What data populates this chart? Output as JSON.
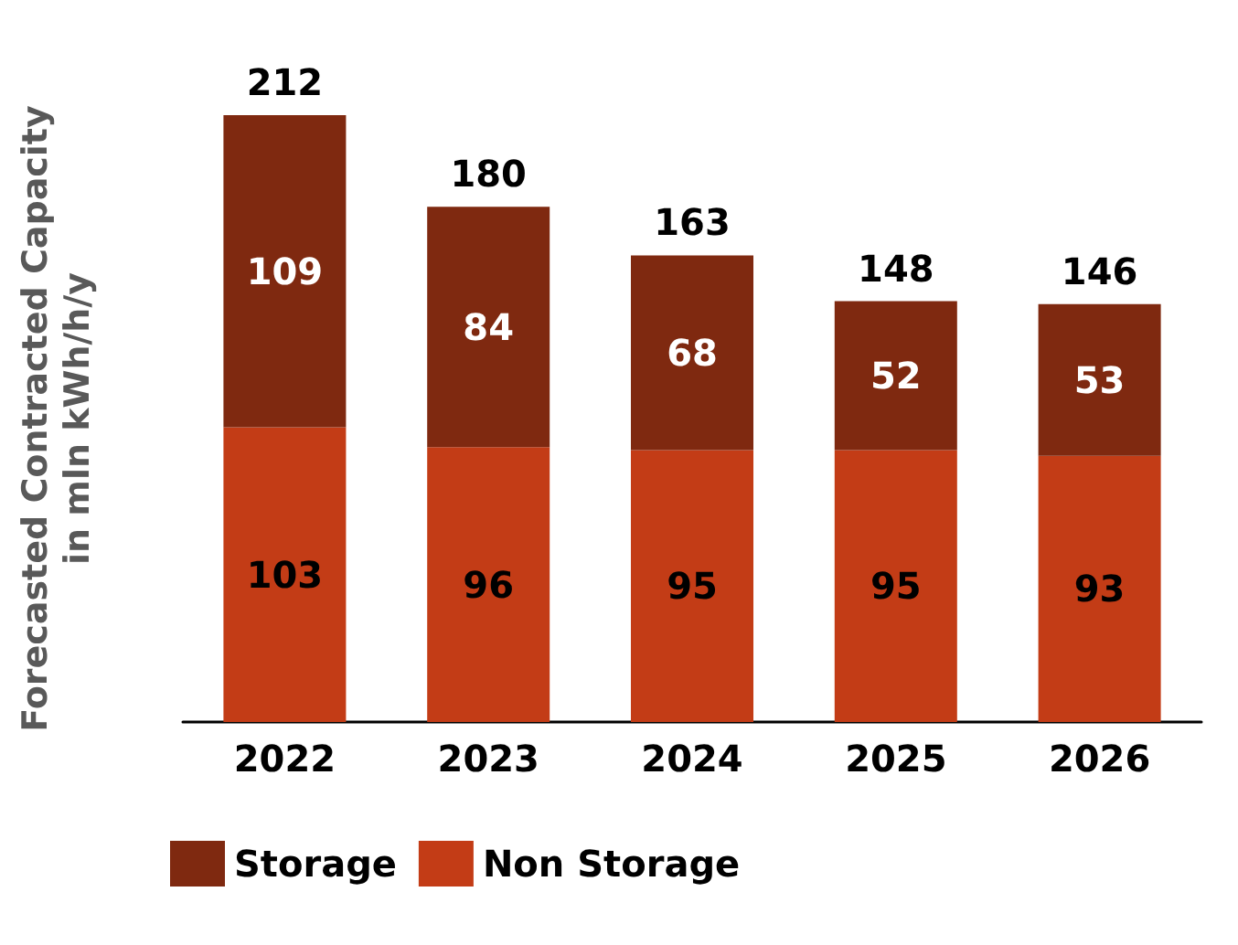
{
  "chart_data": {
    "type": "bar",
    "ylabel": "Forecasted Contracted Capacity\nin mln kWh/h/y",
    "categories": [
      "2022",
      "2023",
      "2024",
      "2025",
      "2026"
    ],
    "stacked": true,
    "series": [
      {
        "name": "Non Storage",
        "color": "#c33c16",
        "values": [
          103,
          96,
          95,
          95,
          93
        ]
      },
      {
        "name": "Storage",
        "color": "#7f2910",
        "values": [
          109,
          84,
          68,
          52,
          53
        ]
      }
    ],
    "totals": [
      "212",
      "180",
      "163",
      "148",
      "146"
    ],
    "data_labels": true,
    "legend": "bottom left",
    "grid": false
  }
}
